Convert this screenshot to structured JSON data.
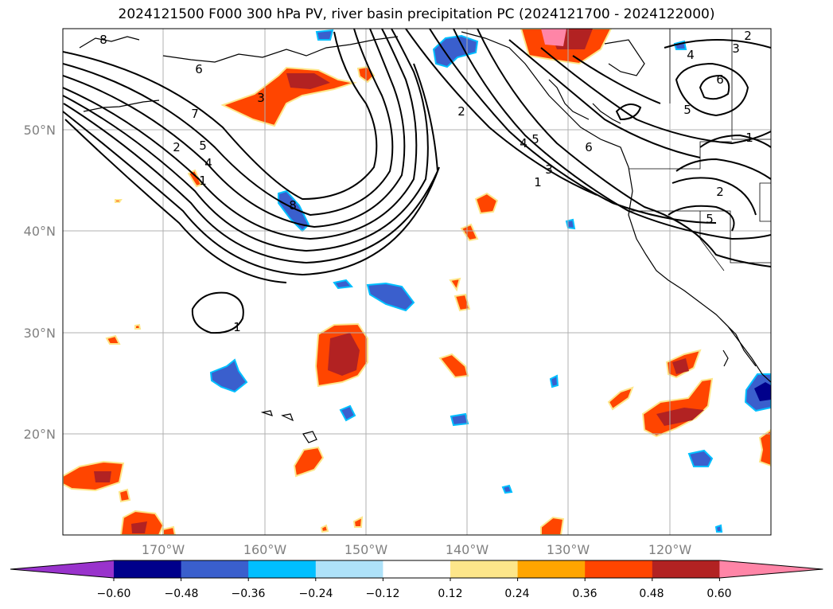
{
  "title": "2024121500 F000 300 hPa PV, river basin precipitation PC (2024121700 - 2024122000)",
  "lat_labels": [
    "50°N",
    "40°N",
    "30°N",
    "20°N"
  ],
  "lon_labels": [
    "170°W",
    "160°W",
    "150°W",
    "140°W",
    "130°W",
    "120°W"
  ],
  "contour_labels": [
    "8",
    "6",
    "7",
    "3",
    "2",
    "5",
    "4",
    "1",
    "8",
    "2",
    "5",
    "4",
    "6",
    "3",
    "1",
    "2",
    "3",
    "4",
    "6",
    "5",
    "1",
    "2",
    "5",
    "1"
  ],
  "colorbar": {
    "ticks": [
      "−0.60",
      "−0.48",
      "−0.36",
      "−0.24",
      "−0.12",
      "0.12",
      "0.24",
      "0.36",
      "0.48",
      "0.60"
    ],
    "colors": [
      "#9933cc",
      "#00008b",
      "#3a5fcd",
      "#00bfff",
      "#aee2f9",
      "#ffffff",
      "#fde68a",
      "#ffa500",
      "#ff4500",
      "#b22222",
      "#ff85a7"
    ]
  },
  "colors": {
    "coast": "#000000",
    "grid": "#b0b0b0",
    "contour": "#000000"
  }
}
